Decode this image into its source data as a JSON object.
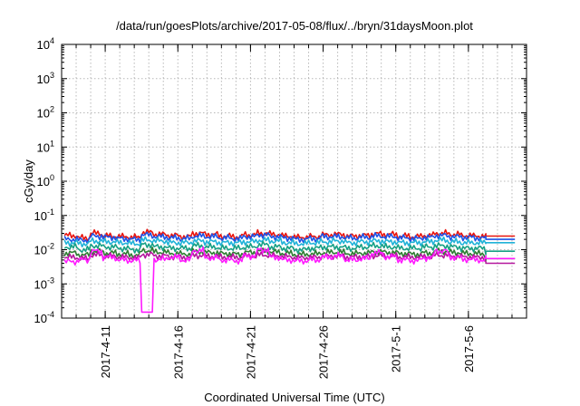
{
  "chart_data": {
    "type": "line",
    "title": "/data/run/goesPlots/archive/2017-05-08/flux/../bryn/31daysMoon.plot",
    "xlabel": "Coordinated Universal Time (UTC)",
    "ylabel": "cGy/day",
    "y_scale": "log",
    "ylim": [
      0.0001,
      10000
    ],
    "y_ticks": [
      {
        "value": 0.0001,
        "base": "10",
        "exp": "-4"
      },
      {
        "value": 0.001,
        "base": "10",
        "exp": "-3"
      },
      {
        "value": 0.01,
        "base": "10",
        "exp": "-2"
      },
      {
        "value": 0.1,
        "base": "10",
        "exp": "-1"
      },
      {
        "value": 1,
        "base": "10",
        "exp": "0"
      },
      {
        "value": 10,
        "base": "10",
        "exp": "1"
      },
      {
        "value": 100,
        "base": "10",
        "exp": "2"
      },
      {
        "value": 1000,
        "base": "10",
        "exp": "3"
      },
      {
        "value": 10000,
        "base": "10",
        "exp": "4"
      }
    ],
    "xlim": [
      "2017-04-08",
      "2017-05-10"
    ],
    "x_ticks": [
      "2017-4-11",
      "2017-4-16",
      "2017-4-21",
      "2017-4-26",
      "2017-5-1",
      "2017-5-6"
    ],
    "grid": true,
    "legend": "none",
    "series": [
      {
        "color": "#e8140e",
        "baseline": 0.025,
        "values": [
          0.026,
          0.022,
          0.03,
          0.025,
          0.024,
          0.023,
          0.032,
          0.028,
          0.026,
          0.024,
          0.03,
          0.028,
          0.025,
          0.024,
          0.027,
          0.03,
          0.028,
          0.025,
          0.023,
          0.024,
          0.027,
          0.028,
          0.025,
          0.026,
          0.029,
          0.028,
          0.025,
          0.024,
          0.026,
          0.03,
          0.028,
          0.026,
          0.025,
          0.024
        ]
      },
      {
        "color": "#1e52e6",
        "baseline": 0.02,
        "values": [
          0.02,
          0.019,
          0.025,
          0.023,
          0.021,
          0.02,
          0.027,
          0.024,
          0.022,
          0.021,
          0.025,
          0.024,
          0.022,
          0.021,
          0.024,
          0.027,
          0.024,
          0.022,
          0.02,
          0.021,
          0.024,
          0.024,
          0.022,
          0.023,
          0.025,
          0.024,
          0.022,
          0.021,
          0.023,
          0.026,
          0.024,
          0.023,
          0.022,
          0.02
        ]
      },
      {
        "color": "#20b2d8",
        "baseline": 0.016,
        "values": [
          0.016,
          0.015,
          0.018,
          0.017,
          0.016,
          0.015,
          0.019,
          0.018,
          0.016,
          0.016,
          0.018,
          0.017,
          0.016,
          0.016,
          0.017,
          0.019,
          0.018,
          0.016,
          0.015,
          0.016,
          0.017,
          0.018,
          0.016,
          0.017,
          0.018,
          0.017,
          0.016,
          0.016,
          0.017,
          0.019,
          0.017,
          0.016,
          0.016,
          0.016
        ]
      },
      {
        "color": "#16a085",
        "baseline": 0.009,
        "values": [
          0.012,
          0.01,
          0.013,
          0.012,
          0.011,
          0.01,
          0.014,
          0.012,
          0.011,
          0.011,
          0.013,
          0.012,
          0.011,
          0.011,
          0.012,
          0.014,
          0.012,
          0.011,
          0.01,
          0.011,
          0.012,
          0.012,
          0.011,
          0.012,
          0.013,
          0.012,
          0.011,
          0.011,
          0.012,
          0.013,
          0.012,
          0.011,
          0.011,
          0.009
        ]
      },
      {
        "color": "#2e7d32",
        "baseline": 0.0055,
        "values": [
          0.008,
          0.007,
          0.009,
          0.008,
          0.0075,
          0.007,
          0.0095,
          0.0085,
          0.0078,
          0.0074,
          0.0088,
          0.0082,
          0.0077,
          0.0074,
          0.0083,
          0.0092,
          0.0085,
          0.0078,
          0.0072,
          0.0075,
          0.0082,
          0.0084,
          0.0077,
          0.0079,
          0.0086,
          0.0083,
          0.0077,
          0.0074,
          0.008,
          0.009,
          0.0083,
          0.0078,
          0.0076,
          0.0055
        ]
      },
      {
        "color": "#b5179e",
        "baseline": 0.004,
        "values": [
          0.006,
          0.0055,
          0.007,
          0.0065,
          0.006,
          0.0058,
          0.0072,
          0.0066,
          0.0062,
          0.006,
          0.0068,
          0.0064,
          0.0061,
          0.006,
          0.0065,
          0.007,
          0.0066,
          0.0062,
          0.0058,
          0.006,
          0.0064,
          0.0066,
          0.0061,
          0.0062,
          0.0067,
          0.0065,
          0.0061,
          0.006,
          0.0063,
          0.0069,
          0.0065,
          0.0062,
          0.006,
          0.004
        ]
      },
      {
        "color": "#ff1aff",
        "baseline": 0.0055,
        "values": [
          0.0045,
          0.005,
          0.009,
          0.006,
          0.005,
          0.0048,
          0.00015,
          0.0052,
          0.006,
          0.005,
          0.0095,
          0.0058,
          0.005,
          0.0048,
          0.0065,
          0.01,
          0.006,
          0.005,
          0.0047,
          0.005,
          0.006,
          0.0065,
          0.005,
          0.0055,
          0.008,
          0.0062,
          0.005,
          0.0048,
          0.0058,
          0.0092,
          0.006,
          0.0052,
          0.005,
          0.0055
        ]
      }
    ]
  }
}
